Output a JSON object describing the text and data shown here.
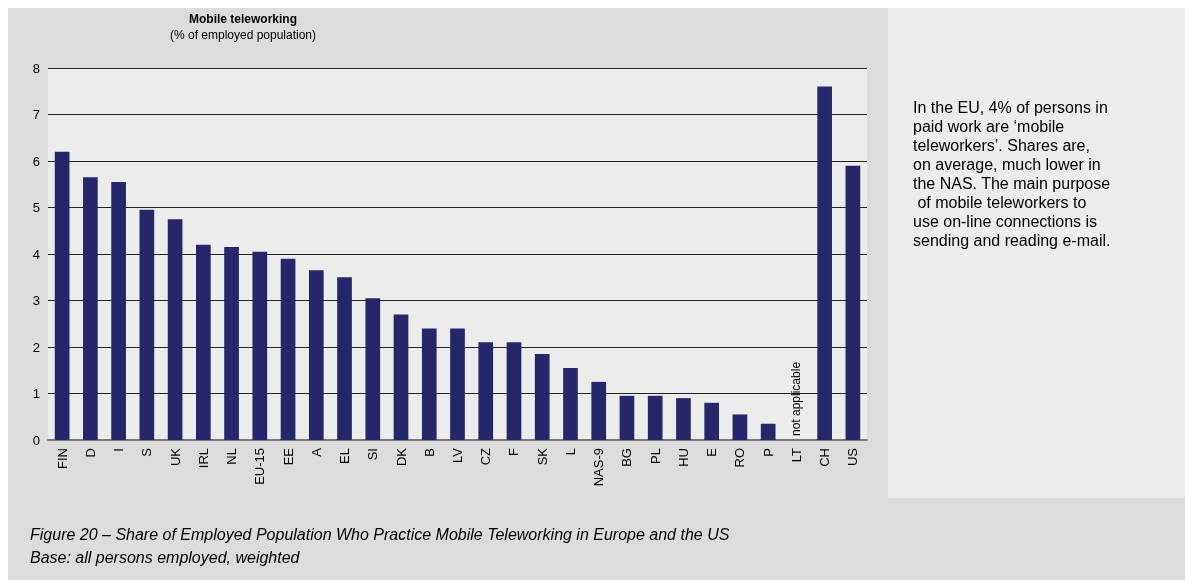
{
  "chart_data": {
    "type": "bar",
    "title": "Mobile teleworking",
    "subtitle": "(% of employed population)",
    "categories": [
      "FIN",
      "D",
      "I",
      "S",
      "UK",
      "IRL",
      "NL",
      "EU-15",
      "EE",
      "A",
      "EL",
      "SI",
      "DK",
      "B",
      "LV",
      "CZ",
      "F",
      "SK",
      "L",
      "NAS-9",
      "BG",
      "PL",
      "HU",
      "E",
      "RO",
      "P",
      "LT",
      "CH",
      "US"
    ],
    "values": [
      6.2,
      5.65,
      5.55,
      4.95,
      4.75,
      4.2,
      4.15,
      4.05,
      3.9,
      3.65,
      3.5,
      3.05,
      2.7,
      2.4,
      2.4,
      2.1,
      2.1,
      1.85,
      1.55,
      1.25,
      0.95,
      0.95,
      0.9,
      0.8,
      0.55,
      0.35,
      null,
      7.6,
      5.9
    ],
    "color": "#26266b",
    "ylim": [
      0,
      8
    ],
    "yticks": [
      0,
      1,
      2,
      3,
      4,
      5,
      6,
      7,
      8
    ],
    "grid": "y",
    "annotations": [
      "not applicable",
      "In the EU, 4% of persons in paid work are ‘mobile teleworkers’. Shares are, on average, much lower in the NAS. The main purpose of mobile teleworkers to use on-line connections is sending and reading e-mail.",
      "Figure 20 – Share of Employed Population Who Practice Mobile Teleworking in Europe and the US",
      "Base: all persons employed, weighted"
    ]
  }
}
